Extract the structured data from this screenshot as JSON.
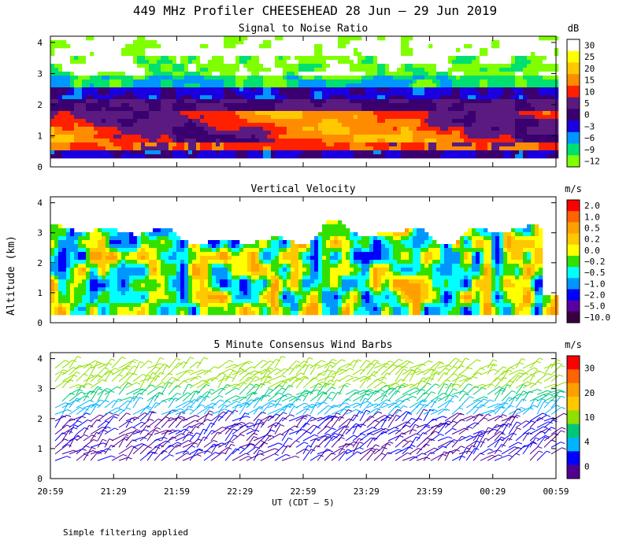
{
  "title": "449 MHz Profiler CHEESEHEAD 28 Jun – 29 Jun 2019",
  "ylabel": "Altitude (km)",
  "xlabel": "UT  (CDT – 5)",
  "x_ticks": [
    "20:59",
    "21:29",
    "21:59",
    "22:29",
    "22:59",
    "23:29",
    "23:59",
    "00:29",
    "00:59"
  ],
  "footer": "Simple filtering applied",
  "chart_data": [
    {
      "type": "heatmap",
      "title": "Signal to Noise Ratio",
      "colorbar_unit": "dB",
      "colorbar_labels": [
        "30",
        "25",
        "20",
        "15",
        "10",
        "5",
        "0",
        "−3",
        "−6",
        "−9",
        "−12"
      ],
      "colors": [
        "#ffffff",
        "#ffff00",
        "#ffc800",
        "#ff8c00",
        "#ff2000",
        "#5a1a80",
        "#3a0070",
        "#1a00e0",
        "#0096ff",
        "#00e070",
        "#80ff00"
      ],
      "yticks": [
        "0",
        "1",
        "2",
        "3",
        "4"
      ],
      "ylim": [
        0,
        4.2
      ],
      "x": [
        "20:59",
        "00:59"
      ]
    },
    {
      "type": "heatmap",
      "title": "Vertical Velocity",
      "colorbar_unit": "m/s",
      "colorbar_labels": [
        "2.0",
        "1.0",
        "0.5",
        "0.2",
        "0.0",
        "−0.2",
        "−0.5",
        "−1.0",
        "−2.0",
        "−5.0",
        "−10.0"
      ],
      "colors": [
        "#ff0000",
        "#ff6400",
        "#ffa000",
        "#ffc800",
        "#ffff00",
        "#32e000",
        "#00ffff",
        "#0096ff",
        "#0000ff",
        "#5a00a0",
        "#380040"
      ],
      "yticks": [
        "0",
        "1",
        "2",
        "3",
        "4"
      ],
      "ylim": [
        0,
        4.2
      ],
      "x": [
        "20:59",
        "00:59"
      ]
    },
    {
      "type": "scatter",
      "title": "5 Minute Consensus Wind Barbs",
      "colorbar_unit": "m/s",
      "colorbar_labels": [
        "30",
        "20",
        "10",
        "4",
        "0"
      ],
      "colors": [
        "#ff0000",
        "#ff6400",
        "#ffa000",
        "#ffc800",
        "#90e000",
        "#00c878",
        "#00b4ff",
        "#0000ff",
        "#500090"
      ],
      "yticks": [
        "0",
        "1",
        "2",
        "3",
        "4"
      ],
      "ylim": [
        0,
        4.2
      ],
      "x": [
        "20:59",
        "00:59"
      ]
    }
  ]
}
